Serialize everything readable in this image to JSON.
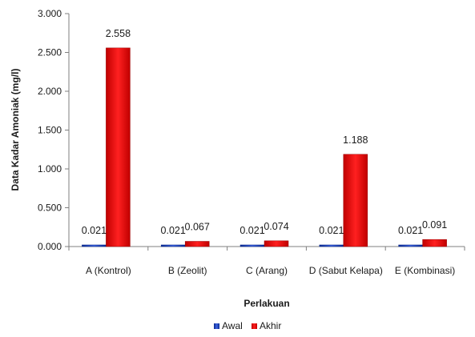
{
  "chart_data": {
    "type": "bar",
    "title": "",
    "xlabel": "Perlakuan",
    "ylabel": "Data Kadar Amoniak (mg/l)",
    "ylim": [
      0,
      3
    ],
    "yticks": [
      "0.000",
      "0.500",
      "1.000",
      "1.500",
      "2.000",
      "2.500",
      "3.000"
    ],
    "categories": [
      "A (Kontrol)",
      "B (Zeolit)",
      "C (Arang)",
      "D (Sabut Kelapa)",
      "E (Kombinasi)"
    ],
    "series": [
      {
        "name": "Awal",
        "color": "#1f3fbf",
        "values": [
          0.021,
          0.021,
          0.021,
          0.021,
          0.021
        ],
        "labels": [
          "0.021",
          "0.021",
          "0.021",
          "0.021",
          "0.021"
        ]
      },
      {
        "name": "Akhir",
        "color": "#e31a1c",
        "values": [
          2.558,
          0.067,
          0.074,
          1.188,
          0.091
        ],
        "labels": [
          "2.558",
          "0.067",
          "0.074",
          "1.188",
          "0.091"
        ]
      }
    ],
    "legend_position": "bottom",
    "grid": false
  }
}
